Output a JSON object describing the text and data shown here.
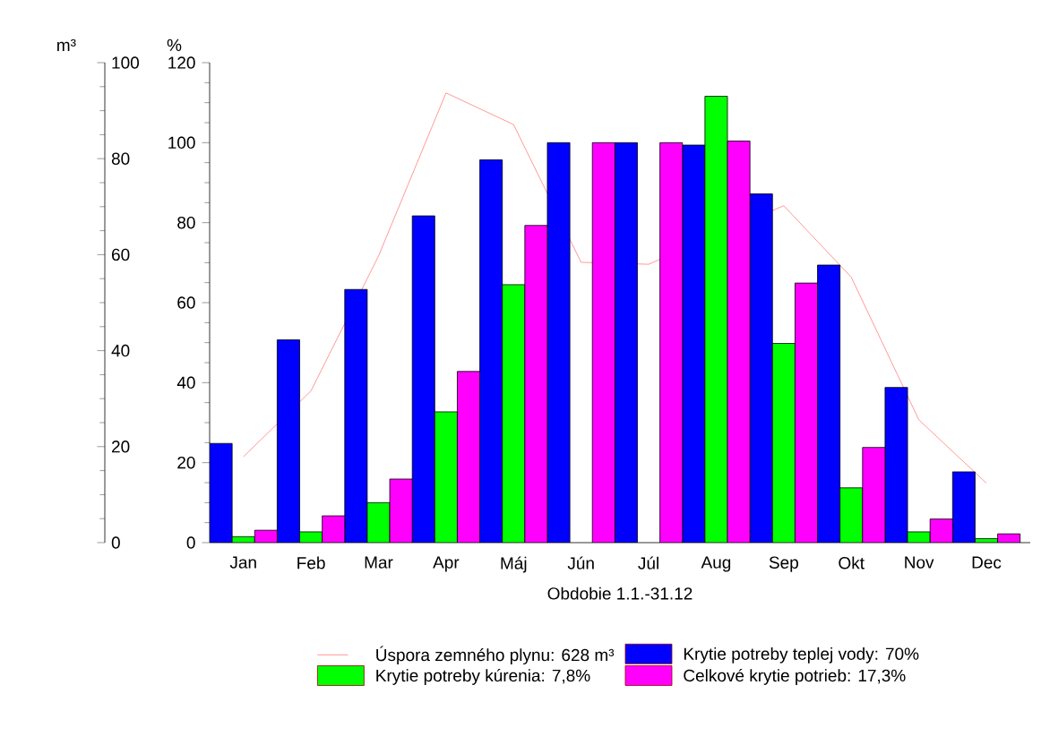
{
  "chart_data": {
    "type": "bar",
    "categories": [
      "Jan",
      "Feb",
      "Mar",
      "Apr",
      "Máj",
      "Jún",
      "Júl",
      "Aug",
      "Sep",
      "Okt",
      "Nov",
      "Dec"
    ],
    "xlabel": "Obdobie 1.1.-31.12",
    "ylabel": "%",
    "y2label": "m³",
    "ylim": [
      0,
      120
    ],
    "yticks": [
      0,
      20,
      40,
      60,
      80,
      100,
      120
    ],
    "y2lim": [
      0,
      100
    ],
    "y2ticks": [
      0,
      20,
      40,
      60,
      80,
      100
    ],
    "legend": "bottom",
    "series": [
      {
        "name": "Úspora zemného plynu: 628 m³",
        "type": "line",
        "axis": "y2",
        "color": "#ff7f7f",
        "marker": "none",
        "line_style": "solid",
        "values": [
          17.9,
          31.6,
          59.7,
          93.7,
          87.1,
          58.4,
          58.0,
          null,
          70.2,
          55.3,
          25.6,
          12.4
        ]
      },
      {
        "name": "Krytie potreby teplej vody: 70%",
        "color": "#0000ff",
        "values": [
          24.8,
          50.7,
          63.3,
          81.7,
          95.7,
          100,
          100,
          99.4,
          87.2,
          69.4,
          38.8,
          17.7
        ]
      },
      {
        "name": "Krytie potreby kúrenia: 7,8%",
        "color": "#00ff00",
        "values": [
          1.5,
          2.7,
          10,
          32.7,
          64.5,
          null,
          null,
          111.6,
          49.8,
          13.7,
          2.7,
          1
        ]
      },
      {
        "name": "Celkové krytie potrieb: 17,3%",
        "color": "#ff00ff",
        "values": [
          3.1,
          6.7,
          15.9,
          42.8,
          79.3,
          100,
          100,
          100.4,
          64.9,
          23.8,
          5.9,
          2.2
        ]
      }
    ]
  }
}
